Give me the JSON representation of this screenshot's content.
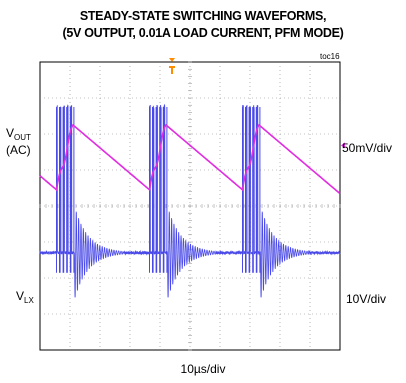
{
  "figure": {
    "title_line1": "STEADY-STATE SWITCHING WAVEFORMS,",
    "title_line2": "(5V OUTPUT, 0.01A LOAD CURRENT, PFM MODE)",
    "code": "toc16",
    "timebase": "10µs/div"
  },
  "chart_data": {
    "type": "line",
    "title": "STEADY-STATE SWITCHING WAVEFORMS, (5V OUTPUT, 0.01A LOAD CURRENT, PFM MODE)",
    "xlabel": "10µs/div",
    "x_unit": "div",
    "xlim": [
      0,
      10
    ],
    "grid": true,
    "divisions": {
      "x": 10,
      "y": 8
    },
    "trigger_marker_x": 4.4,
    "series": [
      {
        "name_main": "V",
        "name_sub": "OUT",
        "name_suffix": "(AC)",
        "scale": "50mV/div",
        "color": "#e02ee0",
        "period_div": 3.1,
        "burst_starts_div": [
          0.55,
          3.65,
          6.75
        ],
        "ramp_peak_offset_div": 0.55,
        "ripple_amplitude_div": 0.9
      },
      {
        "name_main": "V",
        "name_sub": "LX",
        "scale": "10V/div",
        "color": "#4a4ae8",
        "baseline_level_div": -1.3,
        "pulse_high_div": 1.35,
        "pulses_per_burst": 5,
        "pulse_spacing_div": 0.12,
        "ringing_decay_div": 1.6,
        "burst_starts_div": [
          0.55,
          3.65,
          6.75
        ]
      }
    ]
  }
}
